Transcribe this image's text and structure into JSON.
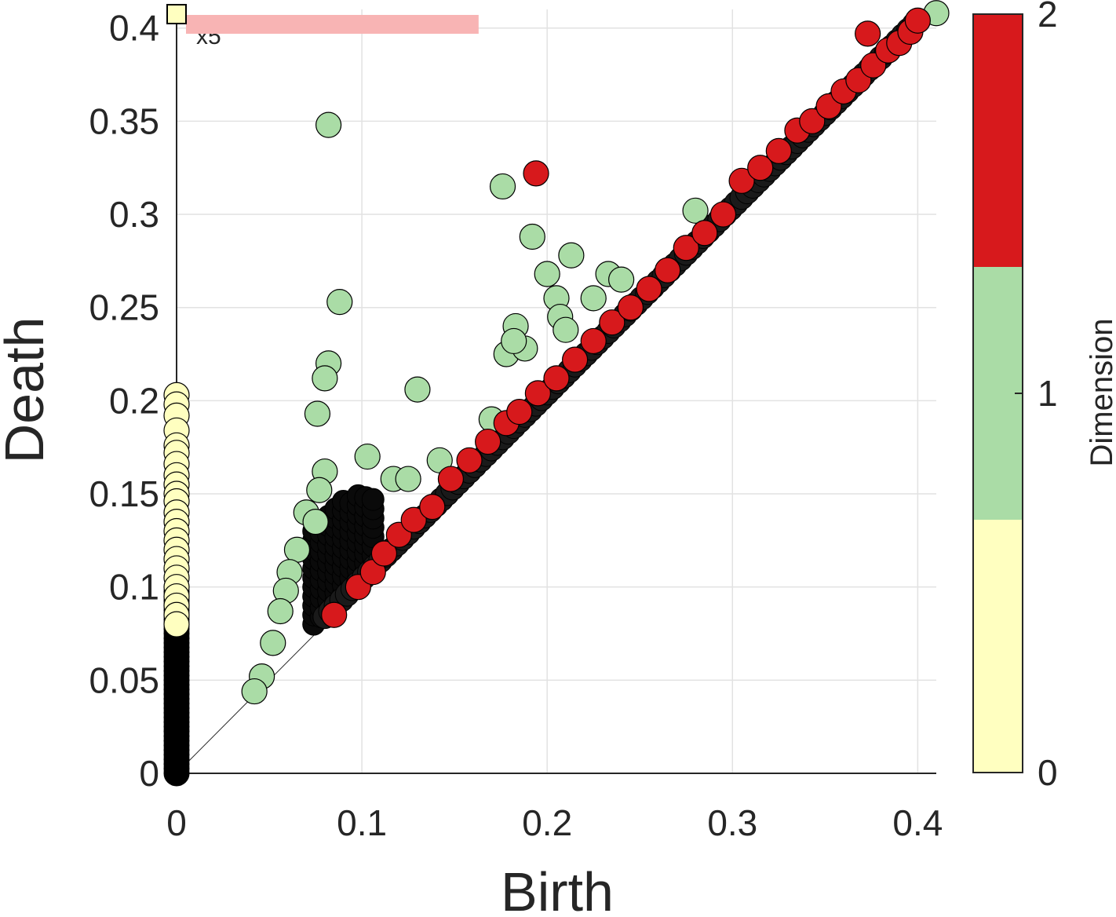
{
  "chart_data": {
    "type": "scatter",
    "title": "",
    "xlabel": "Birth",
    "ylabel": "Death",
    "xlim": [
      0,
      0.41
    ],
    "ylim": [
      0,
      0.41
    ],
    "xticks": [
      0,
      0.1,
      0.2,
      0.3,
      0.4
    ],
    "xtick_labels": [
      "0",
      "0.1",
      "0.2",
      "0.3",
      "0.4"
    ],
    "yticks": [
      0,
      0.05,
      0.1,
      0.15,
      0.2,
      0.25,
      0.3,
      0.35,
      0.4
    ],
    "ytick_labels": [
      "0",
      "0.05",
      "0.1",
      "0.15",
      "0.2",
      "0.25",
      "0.3",
      "0.35",
      "0.4"
    ],
    "grid": true,
    "diagonal": true,
    "infinite_marker": {
      "annotation": "x5",
      "dimension": 0,
      "value": 0.41
    },
    "infinite_bar": {
      "x_range": [
        0,
        0.163
      ],
      "color": "#f8b4b4"
    },
    "colorbar": {
      "label": "Dimension",
      "ticks": [
        0,
        1,
        2
      ],
      "tick_labels": [
        "0",
        "1",
        "2"
      ],
      "colors": [
        "#ffffc0",
        "#aadca6",
        "#d7191c"
      ]
    },
    "series": [
      {
        "name": "dim0",
        "dimension": 0,
        "color": "#ffffc0",
        "x": [
          0,
          0,
          0,
          0,
          0,
          0,
          0,
          0,
          0,
          0,
          0,
          0,
          0,
          0,
          0,
          0,
          0,
          0,
          0,
          0,
          0,
          0,
          0,
          0
        ],
        "y": [
          0.203,
          0.198,
          0.192,
          0.184,
          0.176,
          0.172,
          0.166,
          0.16,
          0.155,
          0.15,
          0.146,
          0.14,
          0.135,
          0.13,
          0.125,
          0.12,
          0.115,
          0.11,
          0.105,
          0.1,
          0.095,
          0.09,
          0.085,
          0.08
        ]
      },
      {
        "name": "dim1",
        "dimension": 1,
        "color": "#aadca6",
        "x": [
          0.41,
          0.082,
          0.176,
          0.192,
          0.088,
          0.213,
          0.233,
          0.28,
          0.2,
          0.205,
          0.207,
          0.21,
          0.225,
          0.183,
          0.178,
          0.188,
          0.082,
          0.08,
          0.13,
          0.076,
          0.103,
          0.117,
          0.07,
          0.08,
          0.077,
          0.075,
          0.065,
          0.061,
          0.059,
          0.056,
          0.052,
          0.046,
          0.042,
          0.125,
          0.142,
          0.17,
          0.24,
          0.182
        ],
        "y": [
          0.408,
          0.348,
          0.315,
          0.288,
          0.253,
          0.278,
          0.268,
          0.302,
          0.268,
          0.255,
          0.245,
          0.238,
          0.255,
          0.24,
          0.225,
          0.228,
          0.22,
          0.212,
          0.206,
          0.193,
          0.17,
          0.158,
          0.14,
          0.162,
          0.152,
          0.135,
          0.12,
          0.108,
          0.098,
          0.087,
          0.07,
          0.052,
          0.044,
          0.158,
          0.168,
          0.19,
          0.265,
          0.232
        ]
      },
      {
        "name": "dim2",
        "dimension": 2,
        "color": "#d7191c",
        "x": [
          0.373,
          0.194,
          0.085,
          0.098,
          0.106,
          0.112,
          0.12,
          0.128,
          0.138,
          0.148,
          0.158,
          0.168,
          0.178,
          0.185,
          0.195,
          0.205,
          0.215,
          0.225,
          0.235,
          0.245,
          0.255,
          0.265,
          0.275,
          0.285,
          0.295,
          0.305,
          0.315,
          0.325,
          0.335,
          0.343,
          0.352,
          0.36,
          0.368,
          0.376,
          0.384,
          0.39,
          0.396,
          0.4
        ],
        "y": [
          0.397,
          0.322,
          0.085,
          0.1,
          0.108,
          0.118,
          0.128,
          0.136,
          0.143,
          0.158,
          0.168,
          0.178,
          0.188,
          0.194,
          0.204,
          0.212,
          0.222,
          0.232,
          0.242,
          0.25,
          0.26,
          0.27,
          0.282,
          0.29,
          0.3,
          0.318,
          0.325,
          0.334,
          0.345,
          0.35,
          0.358,
          0.366,
          0.372,
          0.38,
          0.388,
          0.392,
          0.398,
          0.404
        ]
      }
    ]
  }
}
